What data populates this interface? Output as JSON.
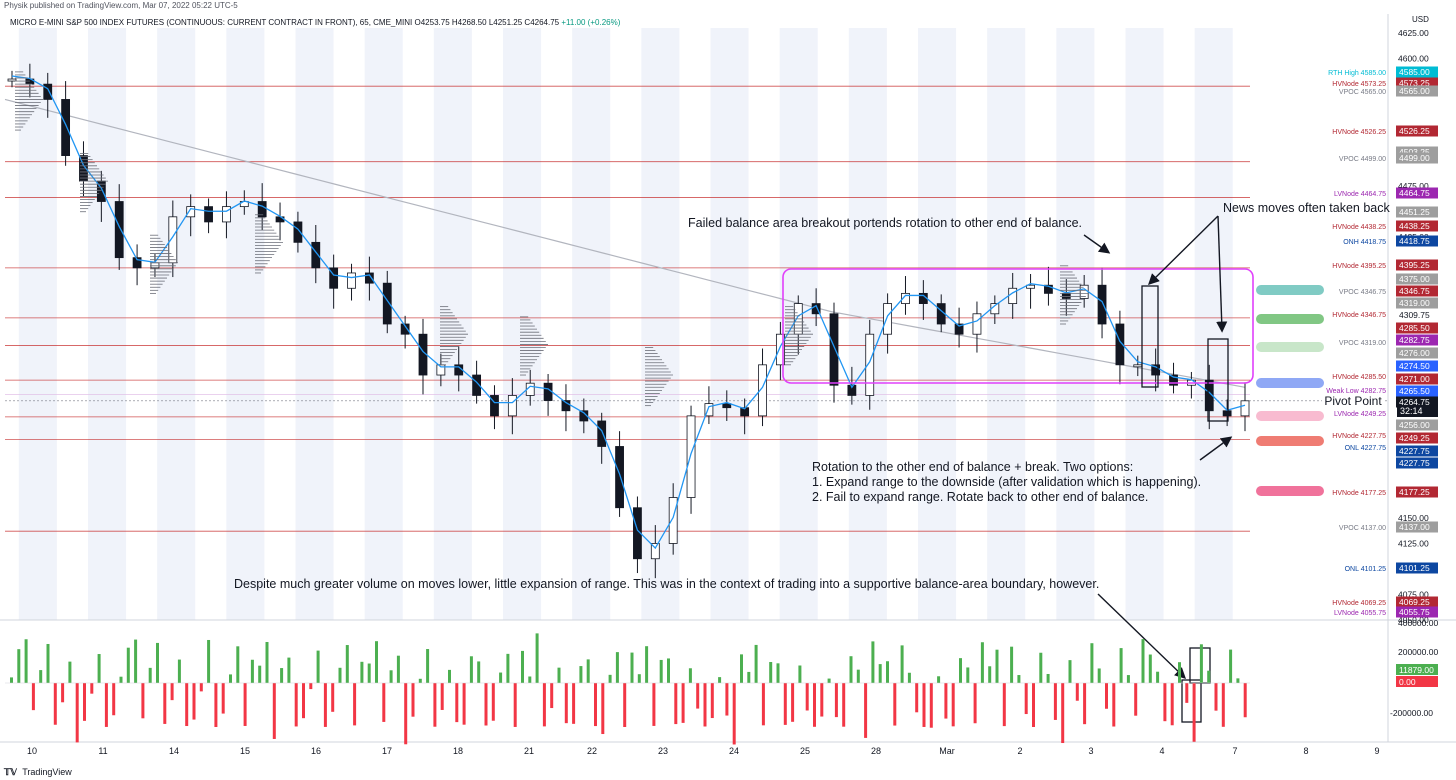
{
  "publisher": "Physik published on TradingView.com, Mar 07, 2022 05:22 UTC-5",
  "header": {
    "symbol_text": "MICRO E-MINI S&P 500 INDEX FUTURES (CONTINUOUS: CURRENT CONTRACT IN FRONT), 65, CME_MINI",
    "open": "O4253.75",
    "high": "H4268.50",
    "low": "L4251.25",
    "close": "C4264.75",
    "change": "+11.00 (+0.26%)"
  },
  "footer_text": "TradingView",
  "countdown": "32:14",
  "pivot_label": "Pivot Point",
  "annotations": [
    {
      "text": "Failed balance area breakout portends rotation to other end of balance."
    },
    {
      "text": "News moves often taken back"
    },
    {
      "text": "Rotation to the other end of balance + break. Two options:"
    },
    {
      "text": "1. Expand range to the downside (after validation which is happening)."
    },
    {
      "text": "2. Fail to expand range. Rotate back to other end of balance."
    },
    {
      "text": "Despite much greater volume on moves lower, little expansion of range. This was in the context of trading into a supportive balance-area boundary, however."
    }
  ],
  "colors": {
    "accent_blue": "#2962ff",
    "up": "#4caf50",
    "down": "#f23645",
    "hvnode": "#b22833",
    "lvnode": "#9c27b0",
    "onh": "#0d47a1",
    "rth": "#00bcd4",
    "balance_box": "#e040fb"
  },
  "chart_data": {
    "type": "candlestick",
    "currency": "USD",
    "timeframe": "65",
    "x_tick_labels": [
      "10",
      "11",
      "14",
      "15",
      "16",
      "17",
      "18",
      "21",
      "22",
      "23",
      "24",
      "25",
      "28",
      "Mar",
      "2",
      "3",
      "4",
      "7",
      "8",
      "9"
    ],
    "y_tick_labels": [
      "4625.00",
      "4600.00",
      "4575.00",
      "4500.00",
      "4475.00",
      "4425.00",
      "4150.00",
      "4125.00",
      "4075.00",
      "4050.00"
    ],
    "ylim": [
      4050,
      4630
    ],
    "approx_close_path": [
      4580,
      4575,
      4560,
      4505,
      4480,
      4460,
      4405,
      4395,
      4400,
      4445,
      4455,
      4440,
      4455,
      4460,
      4445,
      4440,
      4420,
      4395,
      4375,
      4390,
      4380,
      4340,
      4330,
      4290,
      4300,
      4290,
      4270,
      4250,
      4270,
      4282,
      4265,
      4255,
      4245,
      4220,
      4160,
      4110,
      4125,
      4170,
      4250,
      4262,
      4258,
      4250,
      4300,
      4330,
      4360,
      4350,
      4280,
      4270,
      4330,
      4360,
      4370,
      4360,
      4340,
      4330,
      4350,
      4360,
      4375,
      4378,
      4370,
      4365,
      4378,
      4340,
      4300,
      4300,
      4290,
      4280,
      4285,
      4255,
      4250,
      4264.75
    ],
    "price_levels": [
      {
        "label": "RTH High",
        "value": "4585.00",
        "kind": "rth"
      },
      {
        "label": "HVNode",
        "value": "4573.25",
        "kind": "hvnode"
      },
      {
        "label": "VPOC",
        "value": "4565.00",
        "kind": "vpoc"
      },
      {
        "label": "HVNode",
        "value": "4526.25",
        "kind": "hvnode"
      },
      {
        "label": "",
        "value": "4503.25",
        "kind": "grey"
      },
      {
        "label": "VPOC",
        "value": "4499.00",
        "kind": "vpoc"
      },
      {
        "label": "LVNode",
        "value": "4464.75",
        "kind": "lvnode"
      },
      {
        "label": "",
        "value": "4451.25",
        "kind": "grey"
      },
      {
        "label": "HVNode",
        "value": "4438.25",
        "kind": "hvnode"
      },
      {
        "label": "ONH",
        "value": "4418.75",
        "kind": "onh"
      },
      {
        "label": "HVNode",
        "value": "4395.25",
        "kind": "hvnode"
      },
      {
        "label": "",
        "value": "4375.00",
        "kind": "grey"
      },
      {
        "label": "VPOC",
        "value": "4346.75",
        "kind": "vpoc_hv"
      },
      {
        "label": "",
        "value": "4319.00",
        "kind": "grey"
      },
      {
        "label": "",
        "value": "4309.75",
        "kind": "plain"
      },
      {
        "label": "HVNode",
        "value": "4346.75",
        "kind": "hvnode_only"
      },
      {
        "label": "",
        "value": "4285.50",
        "kind": "hvnode"
      },
      {
        "label": "",
        "value": "4282.75",
        "kind": "lvnode"
      },
      {
        "label": "VPOC",
        "value": "4319.00",
        "kind": "vpoc_only"
      },
      {
        "label": "",
        "value": "4276.00",
        "kind": "grey"
      },
      {
        "label": "",
        "value": "4274.50",
        "kind": "blue"
      },
      {
        "label": "HVNode",
        "value": "4285.50",
        "kind": "hvnode_only"
      },
      {
        "label": "",
        "value": "4271.00",
        "kind": "hvnode"
      },
      {
        "label": "Weak Low",
        "value": "4282.75",
        "kind": "lvnode_only"
      },
      {
        "label": "",
        "value": "4265.50",
        "kind": "blue"
      },
      {
        "label": "",
        "value": "4264.75",
        "kind": "last"
      },
      {
        "label": "LVNode",
        "value": "4249.25",
        "kind": "lvnode_only"
      },
      {
        "label": "",
        "value": "4256.00",
        "kind": "grey"
      },
      {
        "label": "HVNode",
        "value": "4227.75",
        "kind": "hvnode_only"
      },
      {
        "label": "",
        "value": "4249.25",
        "kind": "hvnode"
      },
      {
        "label": "ONL",
        "value": "4227.75",
        "kind": "onh_only"
      },
      {
        "label": "",
        "value": "4227.75",
        "kind": "onh"
      },
      {
        "label": "",
        "value": "4227.75",
        "kind": "onh"
      },
      {
        "label": "HVNode",
        "value": "4177.25",
        "kind": "hvnode"
      },
      {
        "label": "VPOC",
        "value": "4137.00",
        "kind": "vpoc"
      },
      {
        "label": "ONL",
        "value": "4101.25",
        "kind": "onh"
      },
      {
        "label": "HVNode",
        "value": "4069.25",
        "kind": "hvnode"
      },
      {
        "label": "LVNode",
        "value": "4055.75",
        "kind": "lvnode"
      }
    ],
    "volume_delta": {
      "y_tick_labels": [
        "400000.00",
        "200000.00",
        "-200000.00"
      ],
      "last_values": [
        "11879.00",
        "0.00"
      ]
    }
  }
}
